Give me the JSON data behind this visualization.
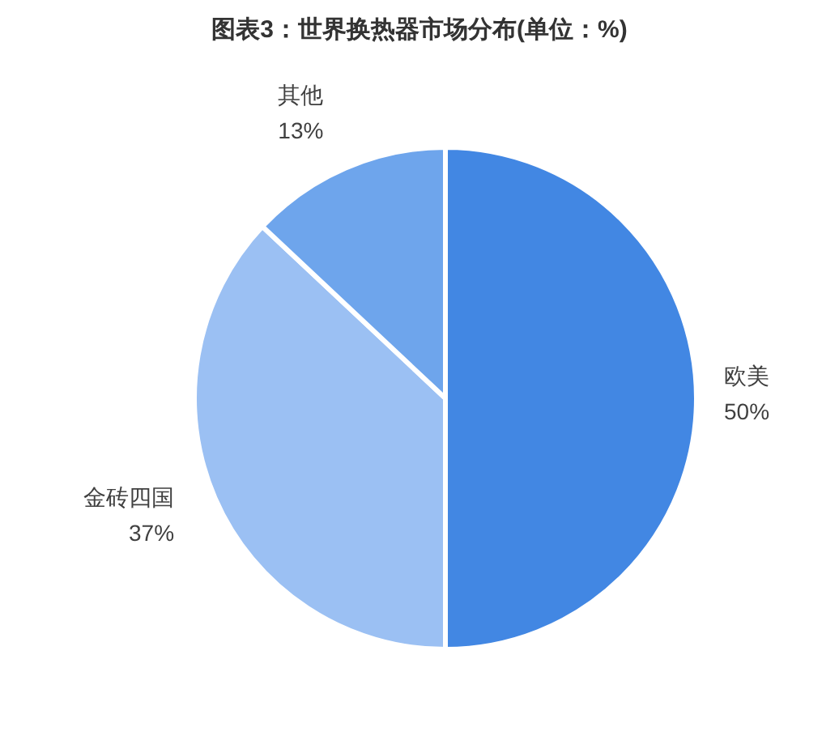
{
  "chart_data": {
    "type": "pie",
    "title": "图表3：世界换热器市场分布(单位：%)",
    "categories": [
      "欧美",
      "金砖四国",
      "其他"
    ],
    "values": [
      50,
      37,
      13
    ],
    "colors": [
      "#4287e3",
      "#9bc0f3",
      "#6ea5ec"
    ],
    "value_labels": [
      "50%",
      "37%",
      "13%"
    ]
  }
}
